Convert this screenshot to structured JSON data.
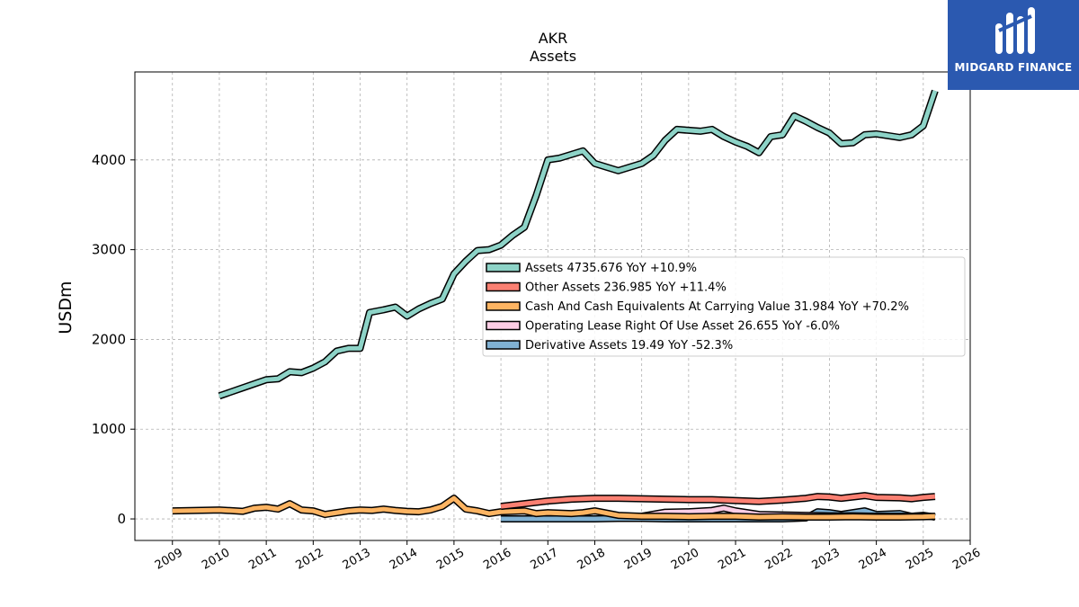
{
  "brand": {
    "name": "MIDGARD FINANCE",
    "color": "#2b59b0"
  },
  "chart_data": {
    "type": "line",
    "title": "AKR",
    "subtitle": "Assets",
    "ylabel": "USDm",
    "xlim": [
      2008.2,
      2026.0
    ],
    "ylim": [
      -240,
      4980
    ],
    "x_ticks": [
      2009,
      2010,
      2011,
      2012,
      2013,
      2014,
      2015,
      2016,
      2017,
      2018,
      2019,
      2020,
      2021,
      2022,
      2023,
      2024,
      2025,
      2026
    ],
    "y_ticks": [
      0,
      1000,
      2000,
      3000,
      4000
    ],
    "grid": true,
    "legend_position": "center-right",
    "series": [
      {
        "name": "Assets",
        "legend": "Assets  4735.676 YoY +10.9%",
        "color": "#8dd3c7",
        "x": [
          2010.0,
          2010.5,
          2011.0,
          2011.25,
          2011.5,
          2011.75,
          2012.0,
          2012.25,
          2012.5,
          2012.75,
          2013.0,
          2013.2,
          2013.5,
          2013.75,
          2014.0,
          2014.25,
          2014.5,
          2014.75,
          2015.0,
          2015.25,
          2015.5,
          2015.75,
          2016.0,
          2016.25,
          2016.5,
          2016.75,
          2017.0,
          2017.25,
          2017.5,
          2017.75,
          2018.0,
          2018.25,
          2018.5,
          2018.75,
          2019.0,
          2019.25,
          2019.5,
          2019.75,
          2020.0,
          2020.25,
          2020.5,
          2020.75,
          2021.0,
          2021.25,
          2021.5,
          2021.75,
          2022.0,
          2022.25,
          2022.5,
          2022.75,
          2023.0,
          2023.25,
          2023.5,
          2023.75,
          2024.0,
          2024.25,
          2024.5,
          2024.75,
          2025.0,
          2025.25
        ],
        "y": [
          1370,
          1460,
          1550,
          1560,
          1640,
          1630,
          1680,
          1750,
          1870,
          1900,
          1900,
          2300,
          2330,
          2360,
          2260,
          2340,
          2400,
          2450,
          2730,
          2870,
          2990,
          3000,
          3050,
          3160,
          3250,
          3600,
          4000,
          4020,
          4060,
          4100,
          3960,
          3920,
          3880,
          3920,
          3960,
          4050,
          4220,
          4340,
          4330,
          4320,
          4340,
          4260,
          4200,
          4150,
          4080,
          4260,
          4280,
          4490,
          4430,
          4360,
          4300,
          4180,
          4190,
          4280,
          4290,
          4270,
          4250,
          4280,
          4380,
          4770
        ]
      },
      {
        "name": "Other Assets",
        "legend": "Other Assets  236.985 YoY +11.4%",
        "color": "#fb8072",
        "x": [
          2016.0,
          2016.5,
          2017.0,
          2017.5,
          2018.0,
          2018.5,
          2019.0,
          2019.5,
          2020.0,
          2020.5,
          2021.0,
          2021.5,
          2022.0,
          2022.5,
          2022.75,
          2023.0,
          2023.25,
          2023.5,
          2023.75,
          2024.0,
          2024.5,
          2024.75,
          2025.0,
          2025.25
        ],
        "y": [
          140,
          170,
          200,
          220,
          230,
          230,
          225,
          220,
          215,
          215,
          205,
          195,
          210,
          230,
          250,
          245,
          230,
          245,
          260,
          240,
          235,
          225,
          240,
          250
        ]
      },
      {
        "name": "Cash And Cash Equivalents At Carrying Value",
        "legend": "Cash And Cash Equivalents At Carrying Value  31.984 YoY +70.2%",
        "color": "#fdb462",
        "x": [
          2009.0,
          2010.0,
          2010.5,
          2010.75,
          2011.0,
          2011.25,
          2011.5,
          2011.75,
          2012.0,
          2012.25,
          2012.5,
          2012.75,
          2013.0,
          2013.25,
          2013.5,
          2013.75,
          2014.0,
          2014.25,
          2014.5,
          2014.75,
          2015.0,
          2015.25,
          2015.5,
          2015.75,
          2016.0,
          2016.5,
          2016.75,
          2017.0,
          2017.5,
          2017.75,
          2018.0,
          2018.5,
          2019.0,
          2019.5,
          2020.0,
          2020.5,
          2021.0,
          2021.5,
          2022.0,
          2022.5,
          2023.0,
          2023.5,
          2024.0,
          2024.5,
          2025.0,
          2025.25
        ],
        "y": [
          90,
          100,
          85,
          120,
          130,
          110,
          170,
          100,
          90,
          50,
          70,
          90,
          100,
          95,
          110,
          95,
          85,
          80,
          100,
          140,
          230,
          110,
          90,
          60,
          80,
          90,
          60,
          70,
          60,
          70,
          90,
          40,
          30,
          30,
          25,
          30,
          30,
          20,
          25,
          20,
          20,
          25,
          20,
          20,
          25,
          30
        ]
      },
      {
        "name": "Operating Lease Right Of Use Asset",
        "legend": "Operating Lease Right Of Use Asset  26.655 YoY -6.0%",
        "color": "#fccde5",
        "x": [
          2019.0,
          2019.5,
          2020.0,
          2020.5,
          2020.75,
          2021.0,
          2021.5,
          2022.0,
          2022.5,
          2023.0,
          2023.5,
          2024.0,
          2024.5,
          2025.0,
          2025.25
        ],
        "y": [
          30,
          75,
          80,
          95,
          120,
          90,
          50,
          45,
          40,
          35,
          35,
          30,
          30,
          28,
          27
        ]
      },
      {
        "name": "Derivative Assets",
        "legend": "Derivative Assets  19.49 YoY -52.3%",
        "color": "#80b1d3",
        "x": [
          2016.0,
          2017.0,
          2018.0,
          2018.5,
          2019.0,
          2019.5,
          2020.0,
          2020.5,
          2021.0,
          2021.5,
          2022.0,
          2022.5,
          2022.75,
          2023.0,
          2023.25,
          2023.5,
          2023.75,
          2024.0,
          2024.5,
          2024.75,
          2025.0,
          2025.25
        ],
        "y": [
          0,
          0,
          0,
          5,
          5,
          0,
          0,
          0,
          0,
          0,
          0,
          10,
          80,
          70,
          50,
          70,
          90,
          50,
          60,
          30,
          40,
          20
        ]
      }
    ]
  }
}
